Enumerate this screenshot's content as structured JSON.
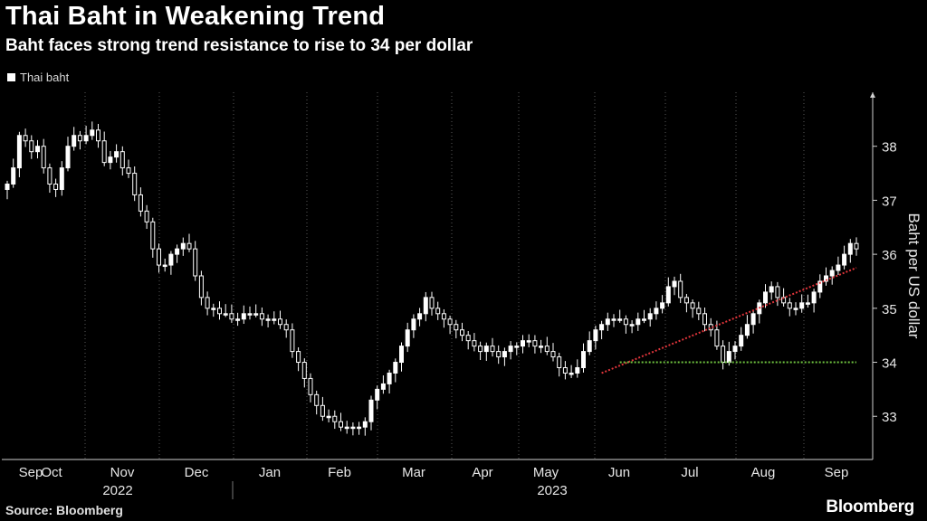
{
  "header": {
    "title": "Thai Baht in Weakening Trend",
    "subtitle": "Baht faces strong trend resistance to rise to 34 per dollar"
  },
  "footer": {
    "source": "Source: Bloomberg",
    "brand": "Bloomberg"
  },
  "colors": {
    "background": "#000000",
    "candle": "#ffffff",
    "trendline": "#e0353b",
    "support": "#6fc43f",
    "grid": "#5a5a5a"
  },
  "chart_data": {
    "type": "candlestick",
    "title": "Thai Baht in Weakening Trend",
    "subtitle": "Baht faces strong trend resistance to rise to 34 per dollar",
    "ylabel": "Baht per US dollar",
    "ylim": [
      32.2,
      39.0
    ],
    "y_ticks": [
      33,
      34,
      35,
      36,
      37,
      38
    ],
    "x_months": [
      "Sep",
      "Oct",
      "Nov",
      "Dec",
      "Jan",
      "Feb",
      "Mar",
      "Apr",
      "May",
      "Jun",
      "Jul",
      "Aug",
      "Sep"
    ],
    "x_years": [
      "2022",
      "2023"
    ],
    "grid": "vertical dotted at month boundaries",
    "legend_position": "top-left",
    "series": [
      {
        "name": "Thai baht",
        "points": [
          [
            0,
            37.3
          ],
          [
            1,
            37.6
          ],
          [
            2,
            38.2
          ],
          [
            3,
            38.1
          ],
          [
            4,
            37.9
          ],
          [
            5,
            38.0
          ],
          [
            6,
            37.6
          ],
          [
            7,
            37.3
          ],
          [
            8,
            37.2
          ],
          [
            9,
            37.6
          ],
          [
            10,
            38.0
          ],
          [
            11,
            38.2
          ],
          [
            12,
            38.1
          ],
          [
            13,
            38.2
          ],
          [
            14,
            38.3
          ],
          [
            15,
            38.1
          ],
          [
            16,
            37.7
          ],
          [
            17,
            37.8
          ],
          [
            18,
            37.9
          ],
          [
            19,
            37.6
          ],
          [
            20,
            37.5
          ],
          [
            21,
            37.1
          ],
          [
            22,
            36.8
          ],
          [
            23,
            36.6
          ],
          [
            24,
            36.1
          ],
          [
            25,
            35.8
          ],
          [
            26,
            35.8
          ],
          [
            27,
            36.0
          ],
          [
            28,
            36.1
          ],
          [
            29,
            36.2
          ],
          [
            30,
            36.1
          ],
          [
            31,
            35.6
          ],
          [
            32,
            35.2
          ],
          [
            33,
            35.0
          ],
          [
            34,
            35.0
          ],
          [
            35,
            34.9
          ],
          [
            36,
            34.9
          ],
          [
            37,
            34.8
          ],
          [
            38,
            34.8
          ],
          [
            39,
            34.9
          ],
          [
            40,
            34.9
          ],
          [
            41,
            34.9
          ],
          [
            42,
            34.8
          ],
          [
            43,
            34.8
          ],
          [
            44,
            34.8
          ],
          [
            45,
            34.7
          ],
          [
            46,
            34.6
          ],
          [
            47,
            34.2
          ],
          [
            48,
            34.0
          ],
          [
            49,
            33.7
          ],
          [
            50,
            33.4
          ],
          [
            51,
            33.2
          ],
          [
            52,
            33.0
          ],
          [
            53,
            33.0
          ],
          [
            54,
            32.9
          ],
          [
            55,
            32.8
          ],
          [
            56,
            32.8
          ],
          [
            57,
            32.8
          ],
          [
            58,
            32.8
          ],
          [
            59,
            32.9
          ],
          [
            60,
            33.3
          ],
          [
            61,
            33.5
          ],
          [
            62,
            33.6
          ],
          [
            63,
            33.8
          ],
          [
            64,
            34.0
          ],
          [
            65,
            34.3
          ],
          [
            66,
            34.6
          ],
          [
            67,
            34.8
          ],
          [
            68,
            34.9
          ],
          [
            69,
            35.2
          ],
          [
            70,
            35.0
          ],
          [
            71,
            34.9
          ],
          [
            72,
            34.8
          ],
          [
            73,
            34.7
          ],
          [
            74,
            34.6
          ],
          [
            75,
            34.5
          ],
          [
            76,
            34.4
          ],
          [
            77,
            34.3
          ],
          [
            78,
            34.2
          ],
          [
            79,
            34.3
          ],
          [
            80,
            34.2
          ],
          [
            81,
            34.1
          ],
          [
            82,
            34.2
          ],
          [
            83,
            34.3
          ],
          [
            84,
            34.3
          ],
          [
            85,
            34.4
          ],
          [
            86,
            34.4
          ],
          [
            87,
            34.3
          ],
          [
            88,
            34.3
          ],
          [
            89,
            34.2
          ],
          [
            90,
            34.1
          ],
          [
            91,
            33.9
          ],
          [
            92,
            33.8
          ],
          [
            93,
            33.8
          ],
          [
            94,
            33.9
          ],
          [
            95,
            34.2
          ],
          [
            96,
            34.4
          ],
          [
            97,
            34.6
          ],
          [
            98,
            34.7
          ],
          [
            99,
            34.8
          ],
          [
            100,
            34.8
          ],
          [
            101,
            34.8
          ],
          [
            102,
            34.7
          ],
          [
            103,
            34.7
          ],
          [
            104,
            34.8
          ],
          [
            105,
            34.8
          ],
          [
            106,
            34.9
          ],
          [
            107,
            35.0
          ],
          [
            108,
            35.1
          ],
          [
            109,
            35.4
          ],
          [
            110,
            35.5
          ],
          [
            111,
            35.2
          ],
          [
            112,
            35.1
          ],
          [
            113,
            35.0
          ],
          [
            114,
            34.9
          ],
          [
            115,
            34.7
          ],
          [
            116,
            34.6
          ],
          [
            117,
            34.3
          ],
          [
            118,
            34.0
          ],
          [
            119,
            34.2
          ],
          [
            120,
            34.3
          ],
          [
            121,
            34.5
          ],
          [
            122,
            34.7
          ],
          [
            123,
            34.9
          ],
          [
            124,
            35.1
          ],
          [
            125,
            35.3
          ],
          [
            126,
            35.4
          ],
          [
            127,
            35.2
          ],
          [
            128,
            35.1
          ],
          [
            129,
            35.0
          ],
          [
            130,
            35.0
          ],
          [
            131,
            35.1
          ],
          [
            132,
            35.1
          ],
          [
            133,
            35.3
          ],
          [
            134,
            35.5
          ],
          [
            135,
            35.6
          ],
          [
            136,
            35.7
          ],
          [
            137,
            35.8
          ],
          [
            138,
            36.0
          ],
          [
            139,
            36.2
          ],
          [
            140,
            36.1
          ]
        ]
      }
    ],
    "annotations": [
      {
        "type": "trendline",
        "style": "red dotted",
        "from": [
          98,
          33.8
        ],
        "to": [
          140,
          35.75
        ]
      },
      {
        "type": "support",
        "style": "green dotted",
        "y": 34.0,
        "from_x": 101,
        "to_x": 140
      }
    ]
  }
}
